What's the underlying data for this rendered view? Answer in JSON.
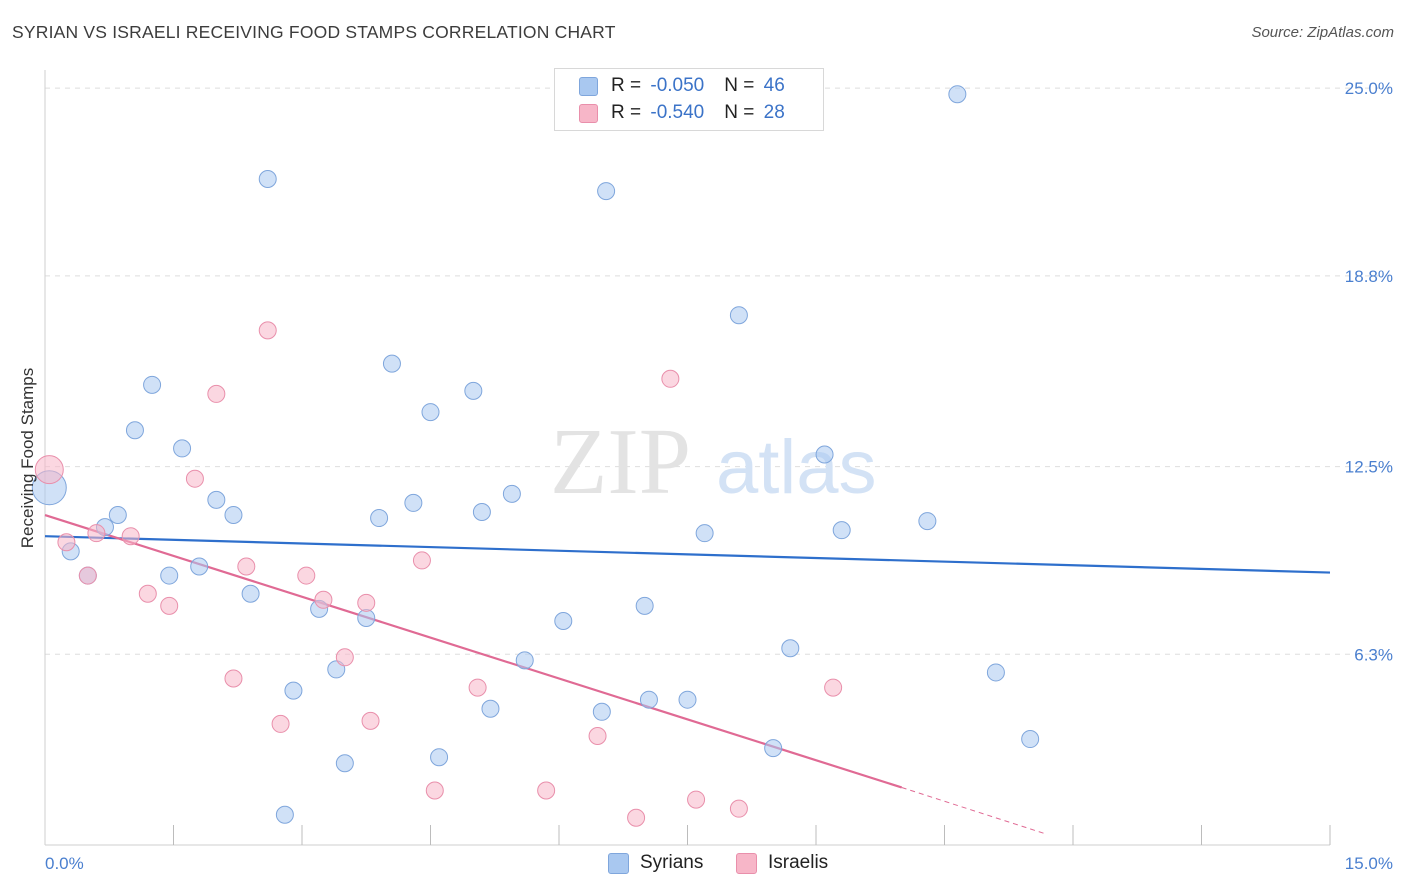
{
  "title": "SYRIAN VS ISRAELI RECEIVING FOOD STAMPS CORRELATION CHART",
  "source": "Source: ZipAtlas.com",
  "watermark": {
    "zip": "ZIP",
    "atlas": "atlas"
  },
  "legend": [
    {
      "r_label": "R = ",
      "r_value": "-0.050",
      "n_label": "N = ",
      "n_value": "46",
      "color": "#a9c8f0"
    },
    {
      "r_label": "R = ",
      "r_value": "-0.540",
      "n_label": "N = ",
      "n_value": "28",
      "color": "#f7b6c8"
    }
  ],
  "bottom_legend": [
    "Syrians",
    "Israelis"
  ],
  "chart_data": {
    "type": "scatter",
    "xlabel": "",
    "ylabel": "Receiving Food Stamps",
    "xlim": [
      0,
      15
    ],
    "ylim": [
      0,
      25.6
    ],
    "x_tick_labels": [
      "0.0%",
      "15.0%"
    ],
    "y_ticks": [
      6.3,
      12.5,
      18.8,
      25.0
    ],
    "y_tick_labels": [
      "6.3%",
      "12.5%",
      "18.8%",
      "25.0%"
    ],
    "grid": true,
    "series": [
      {
        "name": "Syrians",
        "color": "#a9c8f0",
        "stroke": "#7fa6dc",
        "line_color": "#2e6fcc",
        "trend": {
          "x0": 0.0,
          "y0": 10.2,
          "x1": 15.0,
          "y1": 9.0
        },
        "points": [
          [
            0.05,
            11.8
          ],
          [
            0.3,
            9.7
          ],
          [
            0.5,
            8.9
          ],
          [
            0.7,
            10.5
          ],
          [
            0.85,
            10.9
          ],
          [
            1.05,
            13.7
          ],
          [
            1.25,
            15.2
          ],
          [
            1.45,
            8.9
          ],
          [
            1.6,
            13.1
          ],
          [
            1.8,
            9.2
          ],
          [
            2.0,
            11.4
          ],
          [
            2.2,
            10.9
          ],
          [
            2.4,
            8.3
          ],
          [
            2.6,
            22.0
          ],
          [
            2.8,
            1.0
          ],
          [
            2.9,
            5.1
          ],
          [
            3.2,
            7.8
          ],
          [
            3.4,
            5.8
          ],
          [
            3.5,
            2.7
          ],
          [
            3.75,
            7.5
          ],
          [
            3.9,
            10.8
          ],
          [
            4.05,
            15.9
          ],
          [
            4.3,
            11.3
          ],
          [
            4.5,
            14.3
          ],
          [
            4.6,
            2.9
          ],
          [
            5.0,
            15.0
          ],
          [
            5.1,
            11.0
          ],
          [
            5.2,
            4.5
          ],
          [
            5.45,
            11.6
          ],
          [
            5.6,
            6.1
          ],
          [
            6.05,
            7.4
          ],
          [
            6.5,
            4.4
          ],
          [
            6.55,
            21.6
          ],
          [
            7.0,
            7.9
          ],
          [
            7.05,
            4.8
          ],
          [
            7.5,
            4.8
          ],
          [
            7.7,
            10.3
          ],
          [
            8.1,
            17.5
          ],
          [
            8.5,
            3.2
          ],
          [
            8.7,
            6.5
          ],
          [
            9.1,
            12.9
          ],
          [
            9.3,
            10.4
          ],
          [
            10.3,
            10.7
          ],
          [
            10.65,
            24.8
          ],
          [
            11.1,
            5.7
          ],
          [
            11.5,
            3.5
          ]
        ]
      },
      {
        "name": "Israelis",
        "color": "#f7b6c8",
        "stroke": "#e98fab",
        "line_color": "#e06a94",
        "trend": {
          "x0": 0.0,
          "y0": 10.9,
          "x1": 10.0,
          "y1": 1.9
        },
        "trend_dash_end": {
          "x": 11.7,
          "y": 0.35
        },
        "points": [
          [
            0.05,
            12.4
          ],
          [
            0.25,
            10.0
          ],
          [
            0.5,
            8.9
          ],
          [
            0.6,
            10.3
          ],
          [
            1.0,
            10.2
          ],
          [
            1.2,
            8.3
          ],
          [
            1.45,
            7.9
          ],
          [
            1.75,
            12.1
          ],
          [
            2.0,
            14.9
          ],
          [
            2.2,
            5.5
          ],
          [
            2.35,
            9.2
          ],
          [
            2.6,
            17.0
          ],
          [
            2.75,
            4.0
          ],
          [
            3.05,
            8.9
          ],
          [
            3.25,
            8.1
          ],
          [
            3.5,
            6.2
          ],
          [
            3.75,
            8.0
          ],
          [
            3.8,
            4.1
          ],
          [
            4.4,
            9.4
          ],
          [
            4.55,
            1.8
          ],
          [
            5.05,
            5.2
          ],
          [
            5.85,
            1.8
          ],
          [
            6.45,
            3.6
          ],
          [
            6.9,
            0.9
          ],
          [
            7.3,
            15.4
          ],
          [
            7.6,
            1.5
          ],
          [
            8.1,
            1.2
          ],
          [
            9.2,
            5.2
          ]
        ]
      }
    ]
  }
}
